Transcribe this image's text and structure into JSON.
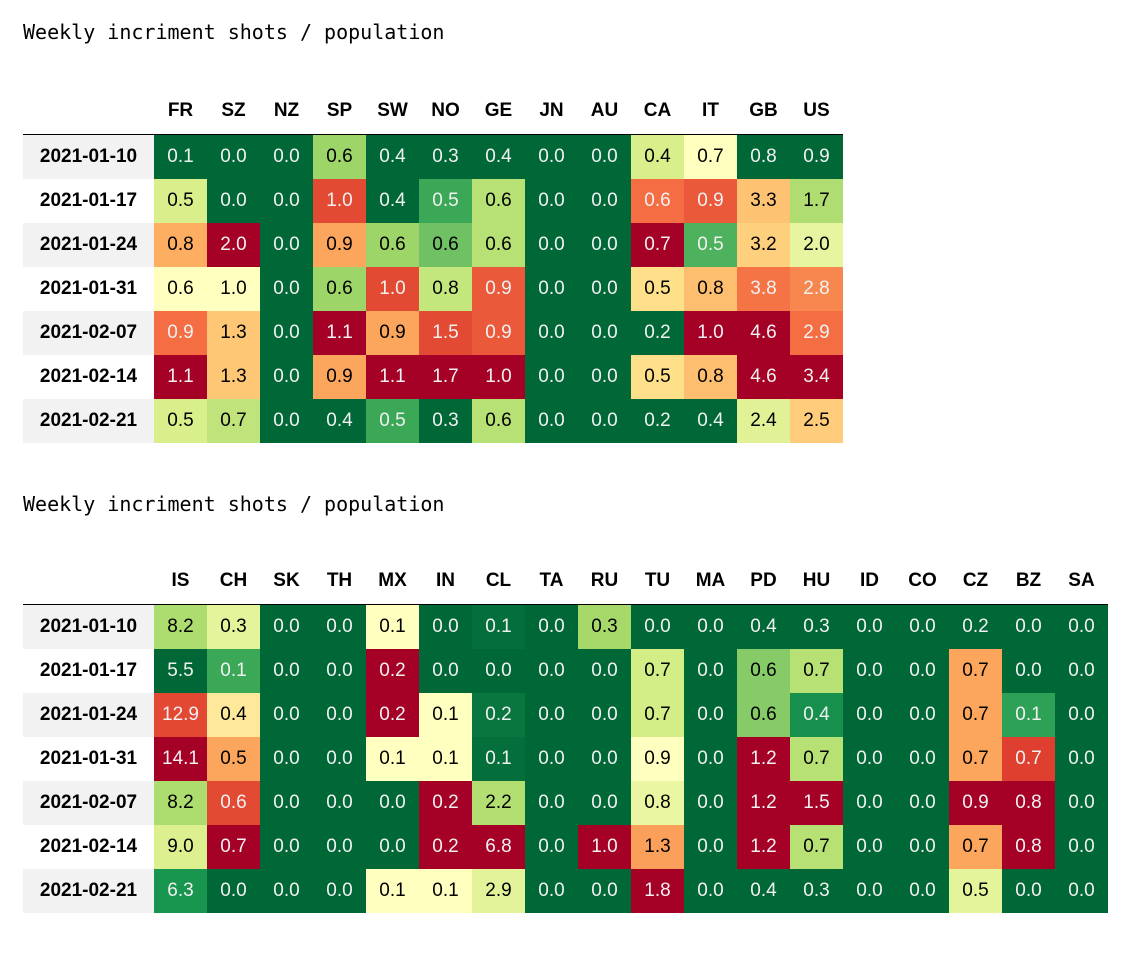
{
  "chart_data": [
    {
      "type": "heatmap",
      "title": "Weekly incriment shots / population",
      "colormap": "RdYlGn_r",
      "columns": [
        "FR",
        "SZ",
        "NZ",
        "SP",
        "SW",
        "NO",
        "GE",
        "JN",
        "AU",
        "CA",
        "IT",
        "GB",
        "US"
      ],
      "rows": [
        "2021-01-10",
        "2021-01-17",
        "2021-01-24",
        "2021-01-31",
        "2021-02-07",
        "2021-02-14",
        "2021-02-21"
      ],
      "values": [
        [
          0.1,
          0.0,
          0.0,
          0.6,
          0.4,
          0.3,
          0.4,
          0.0,
          0.0,
          0.4,
          0.7,
          0.8,
          0.9
        ],
        [
          0.5,
          0.0,
          0.0,
          1.0,
          0.4,
          0.5,
          0.6,
          0.0,
          0.0,
          0.6,
          0.9,
          3.3,
          1.7
        ],
        [
          0.8,
          2.0,
          0.0,
          0.9,
          0.6,
          0.6,
          0.6,
          0.0,
          0.0,
          0.7,
          0.5,
          3.2,
          2.0
        ],
        [
          0.6,
          1.0,
          0.0,
          0.6,
          1.0,
          0.8,
          0.9,
          0.0,
          0.0,
          0.5,
          0.8,
          3.8,
          2.8
        ],
        [
          0.9,
          1.3,
          0.0,
          1.1,
          0.9,
          1.5,
          0.9,
          0.0,
          0.0,
          0.2,
          1.0,
          4.6,
          2.9
        ],
        [
          1.1,
          1.3,
          0.0,
          0.9,
          1.1,
          1.7,
          1.0,
          0.0,
          0.0,
          0.5,
          0.8,
          4.6,
          3.4
        ],
        [
          0.5,
          0.7,
          0.0,
          0.4,
          0.5,
          0.3,
          0.6,
          0.0,
          0.0,
          0.2,
          0.4,
          2.4,
          2.5
        ]
      ]
    },
    {
      "type": "heatmap",
      "title": "Weekly incriment shots / population",
      "colormap": "RdYlGn_r",
      "columns": [
        "IS",
        "CH",
        "SK",
        "TH",
        "MX",
        "IN",
        "CL",
        "TA",
        "RU",
        "TU",
        "MA",
        "PD",
        "HU",
        "ID",
        "CO",
        "CZ",
        "BZ",
        "SA"
      ],
      "rows": [
        "2021-01-10",
        "2021-01-17",
        "2021-01-24",
        "2021-01-31",
        "2021-02-07",
        "2021-02-14",
        "2021-02-21"
      ],
      "values": [
        [
          8.2,
          0.3,
          0.0,
          0.0,
          0.1,
          0.0,
          0.1,
          0.0,
          0.3,
          0.0,
          0.0,
          0.4,
          0.3,
          0.0,
          0.0,
          0.2,
          0.0,
          0.0
        ],
        [
          5.5,
          0.1,
          0.0,
          0.0,
          0.2,
          0.0,
          0.0,
          0.0,
          0.0,
          0.7,
          0.0,
          0.6,
          0.7,
          0.0,
          0.0,
          0.7,
          0.0,
          0.0
        ],
        [
          12.9,
          0.4,
          0.0,
          0.0,
          0.2,
          0.1,
          0.2,
          0.0,
          0.0,
          0.7,
          0.0,
          0.6,
          0.4,
          0.0,
          0.0,
          0.7,
          0.1,
          0.0
        ],
        [
          14.1,
          0.5,
          0.0,
          0.0,
          0.1,
          0.1,
          0.1,
          0.0,
          0.0,
          0.9,
          0.0,
          1.2,
          0.7,
          0.0,
          0.0,
          0.7,
          0.7,
          0.0
        ],
        [
          8.2,
          0.6,
          0.0,
          0.0,
          0.0,
          0.2,
          2.2,
          0.0,
          0.0,
          0.8,
          0.0,
          1.2,
          1.5,
          0.0,
          0.0,
          0.9,
          0.8,
          0.0
        ],
        [
          9.0,
          0.7,
          0.0,
          0.0,
          0.0,
          0.2,
          6.8,
          0.0,
          1.0,
          1.3,
          0.0,
          1.2,
          0.7,
          0.0,
          0.0,
          0.7,
          0.8,
          0.0
        ],
        [
          6.3,
          0.0,
          0.0,
          0.0,
          0.1,
          0.1,
          2.9,
          0.0,
          0.0,
          1.8,
          0.0,
          0.4,
          0.3,
          0.0,
          0.0,
          0.5,
          0.0,
          0.0
        ]
      ]
    }
  ]
}
